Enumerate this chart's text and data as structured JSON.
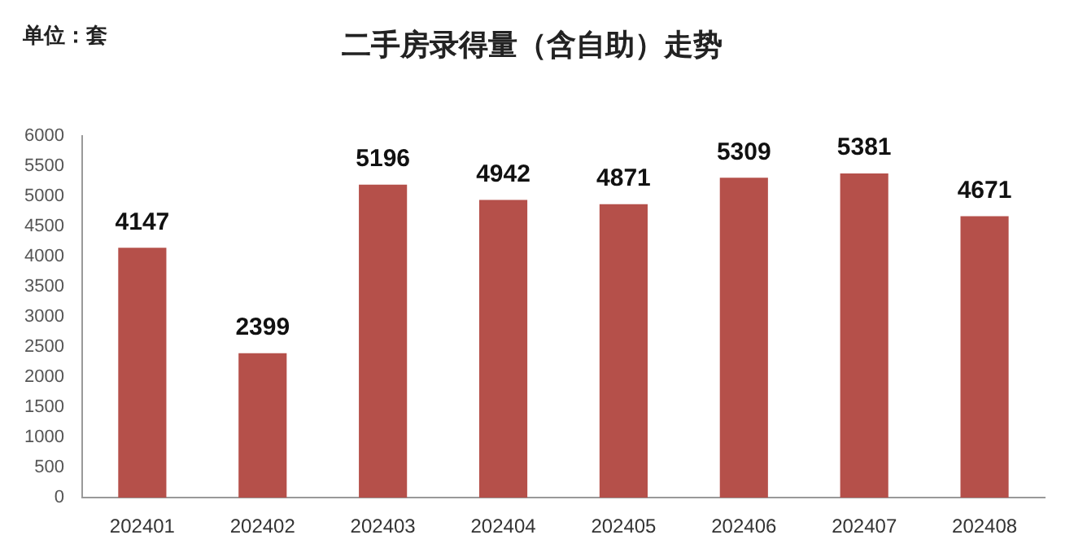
{
  "chart_data": {
    "type": "bar",
    "title": "二手房录得量（含自助）走势",
    "annotations": [
      "单位：套"
    ],
    "categories": [
      "202401",
      "202402",
      "202403",
      "202404",
      "202405",
      "202406",
      "202407",
      "202408"
    ],
    "values": [
      4147,
      2399,
      5196,
      4942,
      4871,
      5309,
      5381,
      4671
    ],
    "color": "#b5504a",
    "ylim": [
      0,
      6000
    ],
    "yticks": [
      0,
      500,
      1000,
      1500,
      2000,
      2500,
      3000,
      3500,
      4000,
      4500,
      5000,
      5500,
      6000
    ],
    "data_labels": true,
    "grid": false,
    "legend": false
  }
}
